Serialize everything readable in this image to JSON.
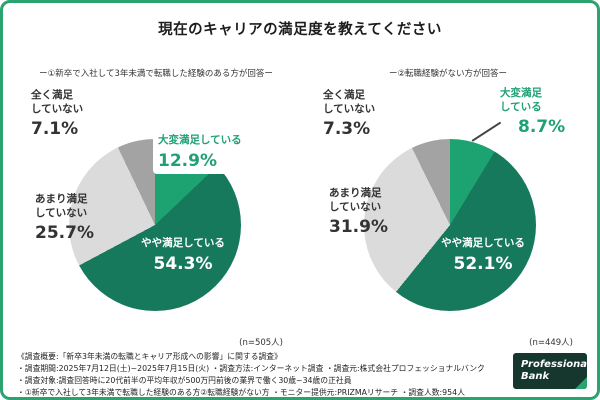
{
  "title": "現在のキャリアの満足度を教えてください",
  "colors": {
    "frame": "#2aa36f",
    "very_satisfied": "#1da371",
    "somewhat_satisfied": "#17795c",
    "not_very_satisfied": "#dbdbdb",
    "not_at_all_satisfied": "#a3a3a3",
    "accent_green": "#1fa173"
  },
  "chart_data": [
    {
      "type": "pie",
      "subtitle": "ー①新卒で入社して3年未満で転職した経験のある方が回答ー",
      "n": 505,
      "n_label": "(n=505人)",
      "slices": [
        {
          "label": "大変満足している",
          "label_lines": "大変満足している",
          "pct": "12.9%",
          "value": 12.9,
          "color_key": "very_satisfied"
        },
        {
          "label": "やや満足している",
          "label_lines": "やや満足している",
          "pct": "54.3%",
          "value": 54.3,
          "color_key": "somewhat_satisfied"
        },
        {
          "label": "あまり満足していない",
          "label_lines": "あまり満足\nしていない",
          "pct": "25.7%",
          "value": 25.7,
          "color_key": "not_very_satisfied"
        },
        {
          "label": "全く満足していない",
          "label_lines": "全く満足\nしていない",
          "pct": "7.1%",
          "value": 7.1,
          "color_key": "not_at_all_satisfied"
        }
      ]
    },
    {
      "type": "pie",
      "subtitle": "ー②転職経験がない方が回答ー",
      "n": 449,
      "n_label": "(n=449人)",
      "slices": [
        {
          "label": "大変満足している",
          "label_lines": "大変満足\nしている",
          "pct": "8.7%",
          "value": 8.7,
          "color_key": "very_satisfied"
        },
        {
          "label": "やや満足している",
          "label_lines": "やや満足している",
          "pct": "52.1%",
          "value": 52.1,
          "color_key": "somewhat_satisfied"
        },
        {
          "label": "あまり満足していない",
          "label_lines": "あまり満足\nしていない",
          "pct": "31.9%",
          "value": 31.9,
          "color_key": "not_very_satisfied"
        },
        {
          "label": "全く満足していない",
          "label_lines": "全く満足\nしていない",
          "pct": "7.3%",
          "value": 7.3,
          "color_key": "not_at_all_satisfied"
        }
      ]
    }
  ],
  "footer": {
    "line1": "《調査概要:「新卒3年未満の転職とキャリア形成への影響」に関する調査》",
    "line2": "・調査期間:2025年7月12日(土)~2025年7月15日(火)  ・調査方法:インターネット調査  ・調査元:株式会社プロフェッショナルバンク",
    "line3": "・調査対象:調査回答時に20代前半の平均年収が500万円前後の業界で働く30歳~34歳の正社員",
    "line4": "・①新卒で入社して3年未満で転職した経験のある方②転職経験がない方  ・モニター提供元:PRIZMAリサーチ  ・調査人数:954人"
  },
  "logo": {
    "line1": "Professional",
    "line2": "Bank"
  }
}
